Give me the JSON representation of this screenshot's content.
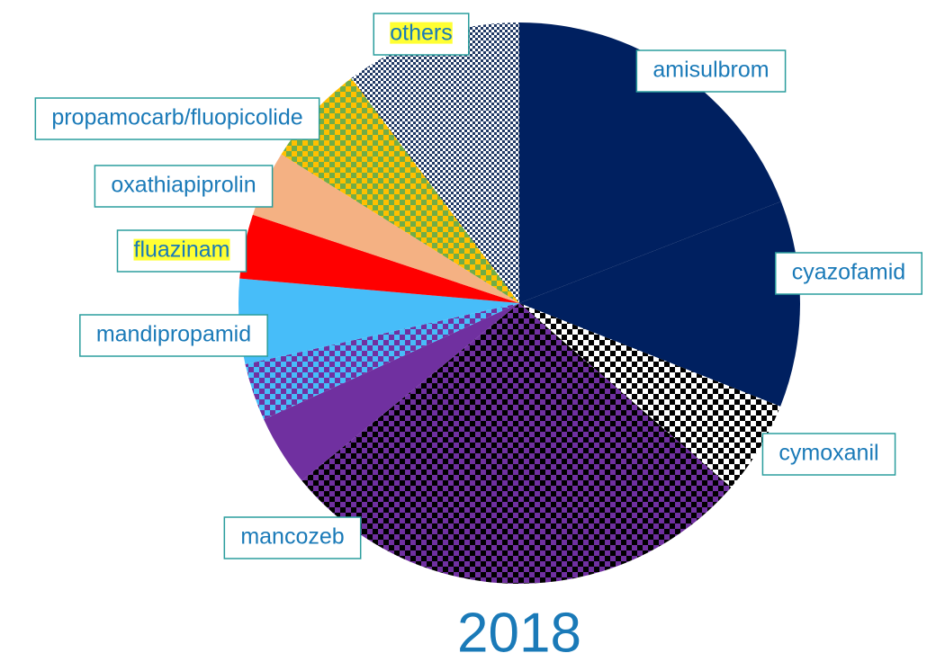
{
  "chart_data": {
    "type": "pie",
    "title": "2018",
    "categories": [
      "amisulbrom",
      "cyazofamid",
      "cymoxanil",
      "mancozeb",
      null,
      null,
      "mandipropamid",
      "fluazinam",
      "oxathiapiprolin",
      "propamocarb/fluopicolide",
      "others"
    ],
    "values": [
      19.1,
      11.9,
      5.4,
      27.7,
      4.1,
      3.3,
      4.9,
      3.7,
      3.8,
      5.9,
      10.2
    ],
    "colors": [
      "#002060",
      "#002060",
      "#000000",
      "#7030a0",
      "#7030a0",
      "#7030a0",
      "#47bdf9",
      "#ff0000",
      "#f4b183",
      "#c9a800",
      "#1f3864"
    ]
  }
}
